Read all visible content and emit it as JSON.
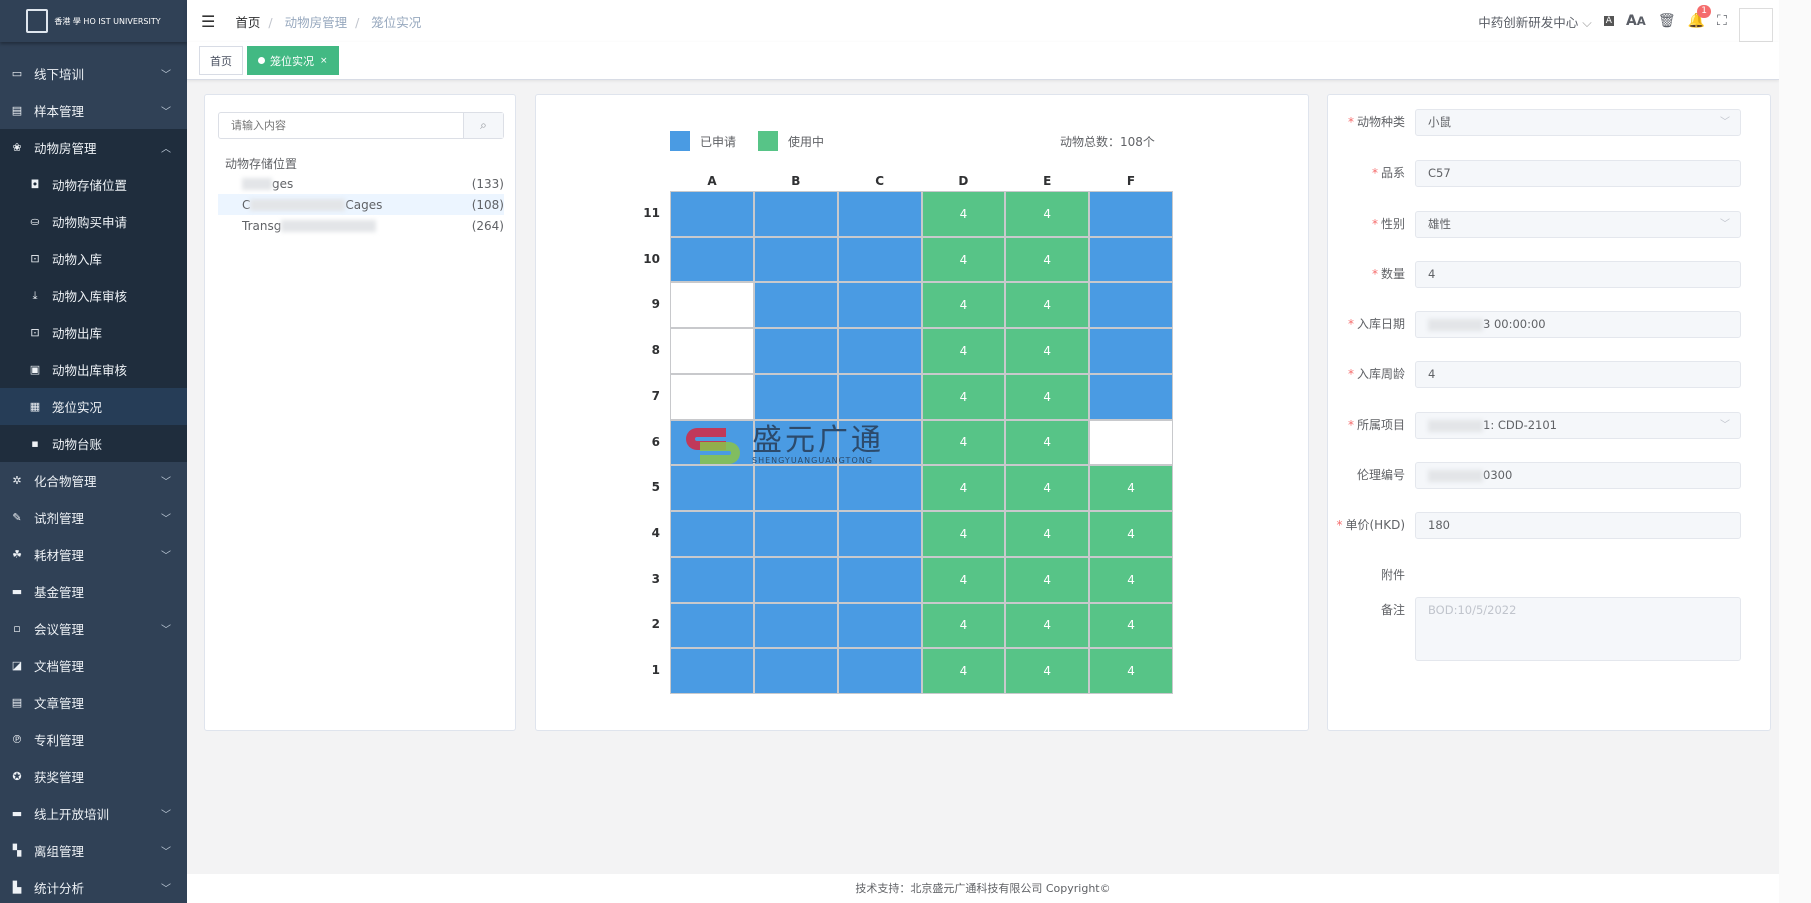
{
  "logo": {
    "text": "香港 學 HO IST UNIVERSITY"
  },
  "sidebar": {
    "items": [
      {
        "label": "线下培训",
        "icon": "presentation-icon",
        "chevron": "chevron-down"
      },
      {
        "label": "样本管理",
        "icon": "sample-icon",
        "chevron": "chevron-down"
      },
      {
        "label": "动物房管理",
        "icon": "paw-icon",
        "chevron": "chevron-up",
        "children": [
          {
            "label": "动物存储位置",
            "icon": "storage-icon"
          },
          {
            "label": "动物购买申请",
            "icon": "cart-icon"
          },
          {
            "label": "动物入库",
            "icon": "inbox-icon"
          },
          {
            "label": "动物入库审核",
            "icon": "download-icon"
          },
          {
            "label": "动物出库",
            "icon": "outbox-icon"
          },
          {
            "label": "动物出库审核",
            "icon": "audit-icon"
          },
          {
            "label": "笼位实况",
            "icon": "grid-icon",
            "active": true
          },
          {
            "label": "动物台账",
            "icon": "ledger-icon"
          }
        ]
      },
      {
        "label": "化合物管理",
        "icon": "compound-icon",
        "chevron": "chevron-down"
      },
      {
        "label": "试剂管理",
        "icon": "pen-icon",
        "chevron": "chevron-down"
      },
      {
        "label": "耗材管理",
        "icon": "consumable-icon",
        "chevron": "chevron-down"
      },
      {
        "label": "基金管理",
        "icon": "fund-icon"
      },
      {
        "label": "会议管理",
        "icon": "meeting-icon",
        "chevron": "chevron-down"
      },
      {
        "label": "文档管理",
        "icon": "document-icon"
      },
      {
        "label": "文章管理",
        "icon": "article-icon"
      },
      {
        "label": "专利管理",
        "icon": "patent-icon"
      },
      {
        "label": "获奖管理",
        "icon": "award-icon"
      },
      {
        "label": "线上开放培训",
        "icon": "laptop-icon",
        "chevron": "chevron-down"
      },
      {
        "label": "离组管理",
        "icon": "leave-icon",
        "chevron": "chevron-down"
      },
      {
        "label": "统计分析",
        "icon": "chart-icon",
        "chevron": "chevron-down"
      }
    ]
  },
  "header": {
    "breadcrumb": [
      "首页",
      "动物房管理",
      "笼位实况"
    ],
    "org": "中药创新研发中心",
    "notification_count": "1"
  },
  "tags": [
    {
      "label": "首页"
    },
    {
      "label": "笼位实况",
      "close": "×"
    }
  ],
  "tree": {
    "search_placeholder": "请输入内容",
    "root": "动物存储位置",
    "nodes": [
      {
        "label": "ges",
        "count": "(133)"
      },
      {
        "label": "C",
        "label2": "Cages",
        "count": "(108)",
        "selected": true
      },
      {
        "label": "Transg",
        "count": "(264)"
      }
    ]
  },
  "cages": {
    "legend": [
      {
        "label": "已申请",
        "color": "#4a9be3"
      },
      {
        "label": "使用中",
        "color": "#57c487"
      }
    ],
    "total": "动物总数：108个",
    "columns": [
      "A",
      "B",
      "C",
      "D",
      "E",
      "F"
    ],
    "rows": [
      "11",
      "10",
      "9",
      "8",
      "7",
      "6",
      "5",
      "4",
      "3",
      "2",
      "1"
    ],
    "status": [
      [
        "applied",
        "applied",
        "applied",
        "in-use",
        "in-use",
        "applied"
      ],
      [
        "applied",
        "applied",
        "applied",
        "in-use",
        "in-use",
        "applied"
      ],
      [
        "empty",
        "applied",
        "applied",
        "in-use",
        "in-use",
        "applied"
      ],
      [
        "empty",
        "applied",
        "applied",
        "in-use",
        "in-use",
        "applied"
      ],
      [
        "empty",
        "applied",
        "applied",
        "in-use",
        "in-use",
        "applied"
      ],
      [
        "applied",
        "applied",
        "applied",
        "in-use",
        "in-use",
        "empty"
      ],
      [
        "applied",
        "applied",
        "applied",
        "in-use",
        "in-use",
        "in-use"
      ],
      [
        "applied",
        "applied",
        "applied",
        "in-use",
        "in-use",
        "in-use"
      ],
      [
        "applied",
        "applied",
        "applied",
        "in-use",
        "in-use",
        "in-use"
      ],
      [
        "applied",
        "applied",
        "applied",
        "in-use",
        "in-use",
        "in-use"
      ],
      [
        "applied",
        "applied",
        "applied",
        "in-use",
        "in-use",
        "in-use"
      ]
    ],
    "counts": [
      [
        "",
        "",
        "",
        "4",
        "4",
        ""
      ],
      [
        "",
        "",
        "",
        "4",
        "4",
        ""
      ],
      [
        "",
        "",
        "",
        "4",
        "4",
        ""
      ],
      [
        "",
        "",
        "",
        "4",
        "4",
        ""
      ],
      [
        "",
        "",
        "",
        "4",
        "4",
        ""
      ],
      [
        "",
        "",
        "",
        "4",
        "4",
        ""
      ],
      [
        "",
        "",
        "",
        "4",
        "4",
        "4"
      ],
      [
        "",
        "",
        "",
        "4",
        "4",
        "4"
      ],
      [
        "",
        "",
        "",
        "4",
        "4",
        "4"
      ],
      [
        "",
        "",
        "",
        "4",
        "4",
        "4"
      ],
      [
        "",
        "",
        "",
        "4",
        "4",
        "4"
      ]
    ],
    "watermark": {
      "title": "盛元广通",
      "subtitle": "SHENGYUANGUANGTONG"
    }
  },
  "form": {
    "fields": [
      {
        "label": "动物种类",
        "required": true,
        "value": "小鼠",
        "type": "select"
      },
      {
        "label": "品系",
        "required": true,
        "value": "C57"
      },
      {
        "label": "性别",
        "required": true,
        "value": "雄性",
        "type": "select"
      },
      {
        "label": "数量",
        "required": true,
        "value": "4"
      },
      {
        "label": "入库日期",
        "required": true,
        "value": "3 00:00:00",
        "blurred": true
      },
      {
        "label": "入库周龄",
        "required": true,
        "value": "4"
      },
      {
        "label": "所属项目",
        "required": true,
        "value": "1: CDD-2101",
        "type": "select",
        "blurred": true
      },
      {
        "label": "伦理编号",
        "required": false,
        "value": "0300",
        "blurred": true
      },
      {
        "label": "单价(HKD)",
        "required": true,
        "value": "180"
      },
      {
        "label": "附件",
        "required": false,
        "type": "none"
      },
      {
        "label": "备注",
        "required": false,
        "value": "BOD:10/5/2022",
        "type": "textarea"
      }
    ]
  },
  "footer": {
    "text": "技术支持：北京盛元广通科技有限公司 Copyright©"
  }
}
